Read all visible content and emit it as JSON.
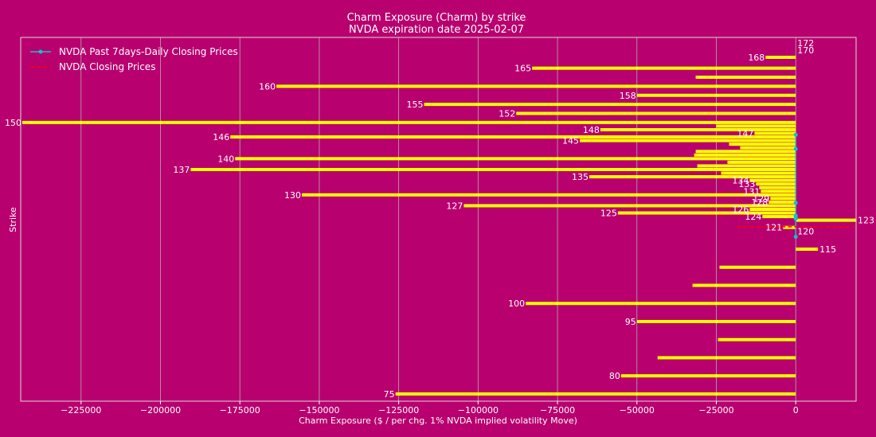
{
  "chart_data": {
    "type": "bar",
    "orientation": "horizontal",
    "title": "Charm Exposure (Charm) by strike",
    "subtitle": "NVDA expiration date 2025-02-07",
    "xlabel": "Charm Exposure ($ / per chg. 1% NVDA implied volatility Move)",
    "ylabel": "Strike",
    "xlim": [
      -244000,
      19000
    ],
    "ylim": [
      73,
      173.5
    ],
    "xticks": [
      -225000,
      -200000,
      -175000,
      -150000,
      -125000,
      -100000,
      -75000,
      -50000,
      -25000,
      0
    ],
    "xtick_labels": [
      "−225000",
      "−200000",
      "−175000",
      "−150000",
      "−125000",
      "−100000",
      "−75000",
      "−50000",
      "−25000",
      "0"
    ],
    "grid": "x",
    "legend_position": "top-left",
    "legend": [
      {
        "label": "NVDA Past 7days-Daily Closing Prices",
        "color": "#17becf",
        "style": "line-marker"
      },
      {
        "label": "NVDA Closing Prices",
        "color": "#ff0000",
        "style": "dashed"
      }
    ],
    "bars": [
      {
        "strike": 172,
        "value": 0,
        "label": "172"
      },
      {
        "strike": 170,
        "value": 0,
        "label": "170"
      },
      {
        "strike": 168,
        "value": -9500,
        "label": "168"
      },
      {
        "strike": 165,
        "value": -83000,
        "label": "165"
      },
      {
        "strike": 162.5,
        "value": -31500,
        "label": ""
      },
      {
        "strike": 160,
        "value": -163500,
        "label": "160"
      },
      {
        "strike": 157.5,
        "value": -50000,
        "label": "158"
      },
      {
        "strike": 155,
        "value": -117000,
        "label": "155"
      },
      {
        "strike": 152.5,
        "value": -88000,
        "label": "152"
      },
      {
        "strike": 150,
        "value": -243500,
        "label": "150"
      },
      {
        "strike": 149,
        "value": -25000,
        "label": ""
      },
      {
        "strike": 148,
        "value": -61500,
        "label": "148"
      },
      {
        "strike": 147,
        "value": -13000,
        "label": "147"
      },
      {
        "strike": 146,
        "value": -178000,
        "label": "146"
      },
      {
        "strike": 145,
        "value": -68000,
        "label": "145"
      },
      {
        "strike": 144,
        "value": -21000,
        "label": ""
      },
      {
        "strike": 143,
        "value": -17500,
        "label": ""
      },
      {
        "strike": 142,
        "value": -31500,
        "label": ""
      },
      {
        "strike": 141,
        "value": -32000,
        "label": ""
      },
      {
        "strike": 140,
        "value": -176500,
        "label": "140"
      },
      {
        "strike": 139,
        "value": -21500,
        "label": ""
      },
      {
        "strike": 138,
        "value": -31000,
        "label": ""
      },
      {
        "strike": 137,
        "value": -190500,
        "label": "137"
      },
      {
        "strike": 136,
        "value": -23500,
        "label": ""
      },
      {
        "strike": 135,
        "value": -65000,
        "label": "135"
      },
      {
        "strike": 134,
        "value": -14500,
        "label": "134"
      },
      {
        "strike": 133,
        "value": -12500,
        "label": "133"
      },
      {
        "strike": 132,
        "value": -11500,
        "label": ""
      },
      {
        "strike": 131,
        "value": -11000,
        "label": "131"
      },
      {
        "strike": 130,
        "value": -155500,
        "label": "130"
      },
      {
        "strike": 129,
        "value": -8000,
        "label": "129"
      },
      {
        "strike": 128,
        "value": -8500,
        "label": "128"
      },
      {
        "strike": 127,
        "value": -104500,
        "label": "127"
      },
      {
        "strike": 126,
        "value": -14500,
        "label": "126"
      },
      {
        "strike": 125,
        "value": -56000,
        "label": "125"
      },
      {
        "strike": 124,
        "value": -10500,
        "label": "124"
      },
      {
        "strike": 123,
        "value": 19000,
        "label": "123"
      },
      {
        "strike": 121,
        "value": -4000,
        "label": "121"
      },
      {
        "strike": 120,
        "value": 0,
        "label": "120"
      },
      {
        "strike": 115,
        "value": 7000,
        "label": "115"
      },
      {
        "strike": 110,
        "value": -24000,
        "label": ""
      },
      {
        "strike": 105,
        "value": -32500,
        "label": ""
      },
      {
        "strike": 100,
        "value": -85000,
        "label": "100"
      },
      {
        "strike": 95,
        "value": -50000,
        "label": "95"
      },
      {
        "strike": 90,
        "value": -24500,
        "label": ""
      },
      {
        "strike": 85,
        "value": -43500,
        "label": ""
      },
      {
        "strike": 80,
        "value": -55000,
        "label": "80"
      },
      {
        "strike": 75,
        "value": -126000,
        "label": "75"
      }
    ],
    "past_closing_prices": [
      {
        "strike": 146.6,
        "value": 0
      },
      {
        "strike": 142.7,
        "value": 0
      },
      {
        "strike": 127.8,
        "value": 0
      },
      {
        "strike": 124.3,
        "value": 0
      },
      {
        "strike": 123.9,
        "value": 0
      },
      {
        "strike": 123.4,
        "value": 0
      },
      {
        "strike": 118.4,
        "value": 0
      }
    ],
    "closing_price": {
      "strike": 121.2,
      "x_range": [
        -18500,
        18500
      ]
    }
  }
}
